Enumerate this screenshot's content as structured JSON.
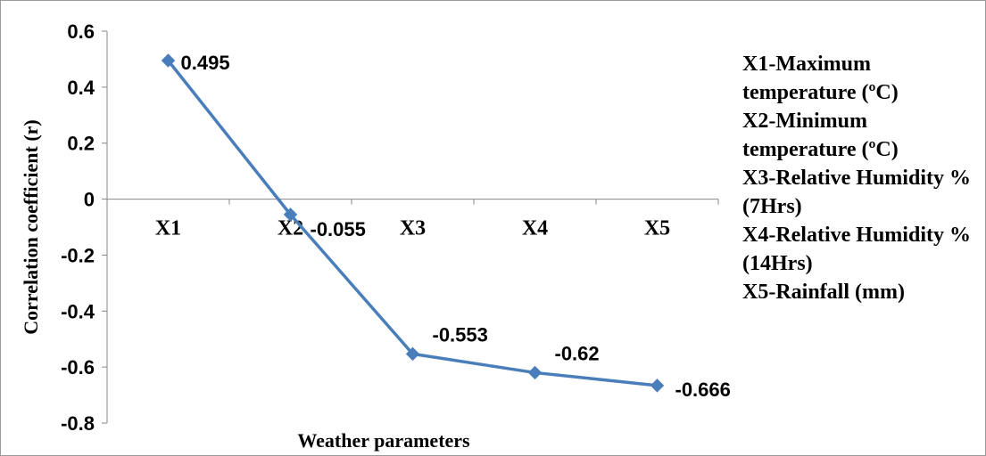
{
  "chart_data": {
    "type": "line",
    "categories": [
      "X1",
      "X2",
      "X3",
      "X4",
      "X5"
    ],
    "series": [
      {
        "values": [
          0.495,
          -0.055,
          -0.553,
          -0.62,
          -0.666
        ],
        "color": "#4A7EBB"
      }
    ],
    "data_labels": [
      "0.495",
      "-0.055",
      "-0.553",
      "-0.62",
      "-0.666"
    ],
    "xlabel": "Weather parameters",
    "ylabel": "Correlation coefficient (r)",
    "ylim": [
      -0.8,
      0.6
    ],
    "yticks": [
      0.6,
      0.4,
      0.2,
      0,
      -0.2,
      -0.4,
      -0.6,
      -0.8
    ],
    "ytick_labels": [
      "0.6",
      "0.4",
      "0.2",
      "0",
      "-0.2",
      "-0.4",
      "-0.6",
      "-0.8"
    ],
    "grid": false,
    "marker": "diamond",
    "legend_notes": [
      "X1-Maximum temperature (ºC)",
      "X2-Minimum temperature (ºC)",
      "X3-Relative Humidity % (7Hrs)",
      "X4-Relative Humidity % (14Hrs)",
      "X5-Rainfall (mm)"
    ]
  }
}
